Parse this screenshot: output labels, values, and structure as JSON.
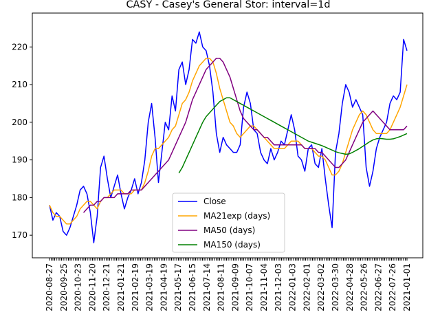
{
  "chart_data": {
    "type": "line",
    "title": "CASY - Casey's General Stor: interval=1d",
    "xlabel": "",
    "ylabel": "",
    "ylim": [
      164,
      229
    ],
    "y_ticks": [
      170,
      180,
      190,
      200,
      210,
      220
    ],
    "x_tick_labels": [
      "2020-08-27",
      "2020-09-25",
      "2020-10-23",
      "2020-11-20",
      "2020-12-21",
      "2021-01-21",
      "2021-02-19",
      "2021-03-19",
      "2021-04-19",
      "2021-05-17",
      "2021-06-15",
      "2021-07-14",
      "2021-08-11",
      "2021-09-09",
      "2021-10-07",
      "2021-11-04",
      "2021-12-03",
      "2022-01-03",
      "2022-02-01",
      "2022-03-02",
      "2022-03-30",
      "2022-04-28",
      "2022-05-26",
      "2022-06-27",
      "2022-07-26",
      "2021-01-01"
    ],
    "grid": false,
    "legend_position": "lower center",
    "series": [
      {
        "name": "Close",
        "color": "#0000ff",
        "values": [
          178,
          174,
          176,
          175,
          171,
          170,
          172,
          175,
          178,
          182,
          183,
          181,
          176,
          168,
          175,
          188,
          191,
          185,
          180,
          183,
          186,
          181,
          177,
          180,
          182,
          185,
          181,
          184,
          190,
          200,
          205,
          196,
          184,
          192,
          200,
          198,
          207,
          203,
          214,
          216,
          210,
          214,
          222,
          221,
          224,
          220,
          219,
          215,
          208,
          197,
          192,
          196,
          194,
          193,
          192,
          192,
          194,
          204,
          208,
          205,
          198,
          197,
          192,
          190,
          189,
          193,
          190,
          192,
          195,
          194,
          198,
          202,
          198,
          191,
          190,
          187,
          193,
          194,
          189,
          188,
          193,
          185,
          178,
          172,
          192,
          197,
          205,
          210,
          208,
          204,
          206,
          204,
          202,
          188,
          183,
          187,
          193,
          196,
          198,
          200,
          205,
          207,
          206,
          208,
          222,
          219
        ]
      },
      {
        "name": "MA21exp (days)",
        "color": "#ffa500",
        "values": [
          178,
          176,
          175,
          175,
          174,
          173,
          173,
          174,
          175,
          177,
          178,
          179,
          179,
          178,
          177,
          179,
          180,
          180,
          181,
          182,
          182,
          182,
          181,
          181,
          181,
          182,
          182,
          182,
          184,
          187,
          191,
          193,
          193,
          194,
          195,
          196,
          198,
          199,
          202,
          205,
          206,
          208,
          211,
          213,
          215,
          216,
          217,
          217,
          216,
          213,
          209,
          206,
          203,
          200,
          199,
          197,
          196,
          197,
          198,
          199,
          199,
          198,
          197,
          196,
          195,
          194,
          193,
          193,
          193,
          193,
          194,
          195,
          195,
          195,
          194,
          193,
          193,
          193,
          192,
          191,
          191,
          190,
          188,
          186,
          186,
          187,
          189,
          192,
          195,
          198,
          200,
          202,
          203,
          202,
          200,
          198,
          197,
          197,
          197,
          197,
          198,
          200,
          202,
          204,
          207,
          210
        ]
      },
      {
        "name": "MA50 (days)",
        "color": "#800080",
        "values": [
          null,
          null,
          null,
          null,
          null,
          null,
          null,
          null,
          null,
          null,
          176,
          177,
          178,
          178,
          179,
          179,
          180,
          180,
          180,
          180,
          181,
          181,
          181,
          181,
          182,
          182,
          182,
          182,
          183,
          184,
          185,
          186,
          187,
          188,
          189,
          190,
          192,
          194,
          196,
          198,
          200,
          203,
          206,
          208,
          210,
          212,
          214,
          215,
          216,
          217,
          217,
          216,
          214,
          212,
          209,
          206,
          203,
          201,
          200,
          199,
          198,
          198,
          197,
          196,
          196,
          195,
          194,
          194,
          194,
          194,
          194,
          194,
          194,
          194,
          194,
          193,
          193,
          193,
          193,
          192,
          192,
          191,
          190,
          189,
          188,
          188,
          189,
          190,
          192,
          194,
          196,
          198,
          200,
          201,
          202,
          203,
          202,
          201,
          200,
          199,
          198,
          198,
          198,
          198,
          198,
          199
        ]
      },
      {
        "name": "MA150 (days)",
        "color": "#008000",
        "values": [
          null,
          null,
          null,
          null,
          null,
          null,
          null,
          null,
          null,
          null,
          null,
          null,
          null,
          null,
          null,
          null,
          null,
          null,
          null,
          null,
          null,
          null,
          null,
          null,
          null,
          null,
          null,
          null,
          null,
          null,
          null,
          null,
          null,
          null,
          null,
          null,
          null,
          null,
          186.5,
          188,
          190,
          192,
          194,
          196,
          198,
          200,
          201.5,
          202.5,
          203.5,
          204.5,
          205.5,
          206,
          206.5,
          206.5,
          206,
          205.5,
          205,
          204.5,
          204,
          203.5,
          203,
          202.5,
          202,
          201.5,
          201,
          200.5,
          200,
          199.5,
          199,
          198.5,
          198,
          197.5,
          197,
          196.5,
          196,
          195.5,
          195,
          194.7,
          194.4,
          194.1,
          193.8,
          193.4,
          193,
          192.6,
          192.2,
          191.9,
          191.7,
          191.5,
          191.6,
          192,
          192.5,
          193,
          193.6,
          194.2,
          194.8,
          195.3,
          195.6,
          195.7,
          195.6,
          195.5,
          195.5,
          195.6,
          195.9,
          196.2,
          196.6,
          197
        ]
      }
    ]
  }
}
